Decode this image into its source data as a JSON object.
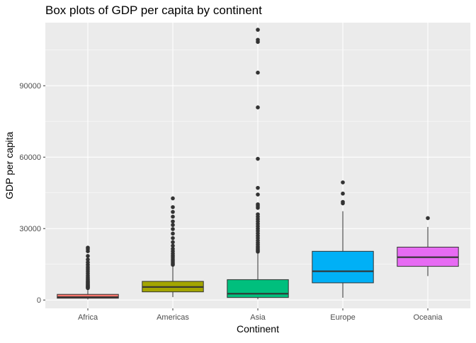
{
  "chart_data": {
    "type": "boxplot",
    "title": "Box plots of GDP per capita by continent",
    "xlabel": "Continent",
    "ylabel": "GDP per capita",
    "ylim": [
      -3500,
      116500
    ],
    "yticks": [
      0,
      30000,
      60000,
      90000
    ],
    "ytick_labels": [
      "0",
      "30000",
      "60000",
      "90000"
    ],
    "grid": true,
    "legend": "none",
    "categories": [
      "Africa",
      "Americas",
      "Asia",
      "Europe",
      "Oceania"
    ],
    "boxes": [
      {
        "category": "Africa",
        "color": "#F8766D",
        "whisker_low": 241,
        "q1": 761,
        "median": 1192,
        "q3": 2377,
        "whisker_high": 4800,
        "outliers": [
          5000,
          5200,
          5450,
          5700,
          5950,
          6250,
          6550,
          6900,
          7250,
          7600,
          8000,
          8500,
          9000,
          9600,
          10300,
          11200,
          12100,
          13000,
          13800,
          14800,
          15800,
          17000,
          18500,
          20500,
          21400,
          22000
        ]
      },
      {
        "category": "Americas",
        "color": "#A3A500",
        "whisker_low": 1202,
        "q1": 3428,
        "median": 5466,
        "q3": 7830,
        "whisker_high": 14300,
        "outliers": [
          14800,
          15300,
          15900,
          16500,
          17200,
          18000,
          18700,
          19500,
          20500,
          21500,
          22800,
          24300,
          26000,
          27900,
          29800,
          31500,
          33000,
          35000,
          37000,
          39000,
          42700
        ]
      },
      {
        "category": "Asia",
        "color": "#00BF7D",
        "whisker_low": 331,
        "q1": 1057,
        "median": 2646,
        "q3": 8549,
        "whisker_high": 19700,
        "outliers": [
          20300,
          20800,
          21300,
          21900,
          22500,
          23300,
          24100,
          25000,
          26000,
          27000,
          28000,
          29000,
          30000,
          31000,
          32000,
          33000,
          34000,
          35000,
          36000,
          38700,
          39500,
          40200,
          44300,
          47100,
          59300,
          80900,
          95500,
          108400,
          109300,
          113500
        ]
      },
      {
        "category": "Europe",
        "color": "#00B0F6",
        "whisker_low": 974,
        "q1": 7213,
        "median": 12082,
        "q3": 20461,
        "whisker_high": 37300,
        "outliers": [
          40600,
          41200,
          44700,
          49400
        ]
      },
      {
        "category": "Oceania",
        "color": "#E76BF3",
        "whisker_low": 10040,
        "q1": 14142,
        "median": 17983,
        "q3": 22214,
        "whisker_high": 30700,
        "outliers": [
          34400
        ]
      }
    ]
  }
}
